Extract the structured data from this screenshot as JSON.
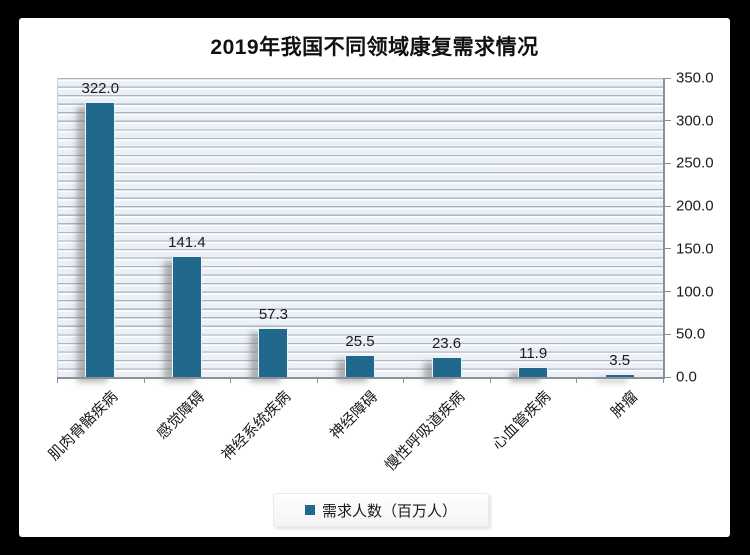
{
  "chart_data": {
    "type": "bar",
    "title": "2019年我国不同领域康复需求情况",
    "categories": [
      "肌肉骨骼疾病",
      "感觉障碍",
      "神经系统疾病",
      "神经障碍",
      "慢性呼吸道疾病",
      "心血管疾病",
      "肿瘤"
    ],
    "values": [
      322.0,
      141.4,
      57.3,
      25.5,
      23.6,
      11.9,
      3.5
    ],
    "value_labels": [
      "322.0",
      "141.4",
      "57.3",
      "25.5",
      "23.6",
      "11.9",
      "3.5"
    ],
    "series_name": "需求人数（百万人）",
    "ylim": [
      0,
      350
    ],
    "y_tick_step": 50,
    "y_tick_labels": [
      "0.0",
      "50.0",
      "100.0",
      "150.0",
      "200.0",
      "250.0",
      "300.0",
      "350.0"
    ],
    "y_axis_side": "right",
    "minor_gridline_step": 10,
    "grid": "horizontal-minor",
    "legend_position": "bottom",
    "colors": {
      "bar": "#20688c",
      "plot_band": "#e9f0f8",
      "gridline": "#a7adb4",
      "axis": "#8b9197",
      "text": "#1a1a1a",
      "page_frame": "#000000",
      "card_background": "#ffffff"
    }
  }
}
